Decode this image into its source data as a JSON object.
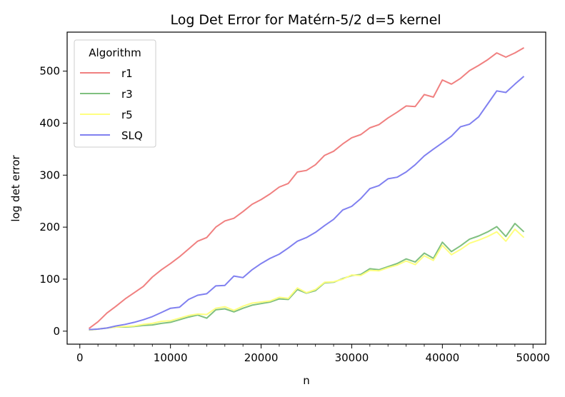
{
  "chart_data": {
    "type": "line",
    "title": "Log Det Error for Matérn-5/2 d=5 kernel",
    "xlabel": "n",
    "ylabel": "log det error",
    "xlim": [
      -1400,
      51400
    ],
    "ylim": [
      -25,
      575
    ],
    "xticks": [
      0,
      10000,
      20000,
      30000,
      40000,
      50000
    ],
    "xtick_labels": [
      "0",
      "10000",
      "20000",
      "30000",
      "40000",
      "50000"
    ],
    "xticks_minor_step": 2000,
    "yticks": [
      0,
      100,
      200,
      300,
      400,
      500
    ],
    "ytick_labels": [
      "0",
      "100",
      "200",
      "300",
      "400",
      "500"
    ],
    "grid": false,
    "legend": {
      "title": "Algorithm",
      "placement": "top-left"
    },
    "x": [
      1000,
      2000,
      3000,
      4000,
      5000,
      6000,
      7000,
      8000,
      9000,
      10000,
      11000,
      12000,
      13000,
      14000,
      15000,
      16000,
      17000,
      18000,
      19000,
      20000,
      21000,
      22000,
      23000,
      24000,
      25000,
      26000,
      27000,
      28000,
      29000,
      30000,
      31000,
      32000,
      33000,
      34000,
      35000,
      36000,
      37000,
      38000,
      39000,
      40000,
      41000,
      42000,
      43000,
      44000,
      45000,
      46000,
      47000,
      48000,
      49000
    ],
    "series": [
      {
        "name": "r1",
        "color": "#f08080",
        "values": [
          5,
          18,
          35,
          48,
          62,
          74,
          86,
          104,
          118,
          130,
          143,
          158,
          173,
          180,
          200,
          212,
          217,
          230,
          244,
          253,
          264,
          277,
          284,
          306,
          309,
          320,
          338,
          346,
          360,
          372,
          378,
          391,
          397,
          410,
          421,
          433,
          432,
          455,
          450,
          483,
          475,
          486,
          501,
          511,
          522,
          535,
          527,
          535,
          545
        ]
      },
      {
        "name": "r3",
        "color": "#80c080",
        "values": [
          2,
          4,
          6,
          8,
          8,
          9,
          11,
          12,
          15,
          17,
          22,
          27,
          31,
          25,
          41,
          43,
          37,
          44,
          50,
          53,
          56,
          62,
          61,
          80,
          73,
          78,
          93,
          94,
          101,
          107,
          109,
          120,
          118,
          124,
          130,
          139,
          133,
          150,
          140,
          171,
          153,
          164,
          177,
          183,
          191,
          201,
          182,
          207,
          191
        ]
      },
      {
        "name": "r5",
        "color": "#ffff80",
        "values": [
          2,
          4,
          6,
          8,
          9,
          10,
          13,
          15,
          19,
          20,
          25,
          30,
          33,
          32,
          44,
          47,
          40,
          48,
          54,
          56,
          58,
          65,
          63,
          83,
          74,
          80,
          94,
          95,
          100,
          108,
          107,
          117,
          116,
          122,
          127,
          135,
          128,
          145,
          136,
          165,
          147,
          157,
          169,
          175,
          182,
          191,
          173,
          196,
          180
        ]
      },
      {
        "name": "SLQ",
        "color": "#8080f0",
        "values": [
          3,
          4,
          6,
          10,
          13,
          17,
          22,
          28,
          36,
          44,
          46,
          61,
          69,
          72,
          87,
          88,
          106,
          103,
          118,
          130,
          140,
          148,
          160,
          173,
          180,
          190,
          203,
          215,
          233,
          240,
          255,
          274,
          280,
          293,
          296,
          306,
          320,
          337,
          350,
          362,
          375,
          393,
          398,
          412,
          437,
          462,
          459,
          475,
          490
        ]
      }
    ]
  }
}
